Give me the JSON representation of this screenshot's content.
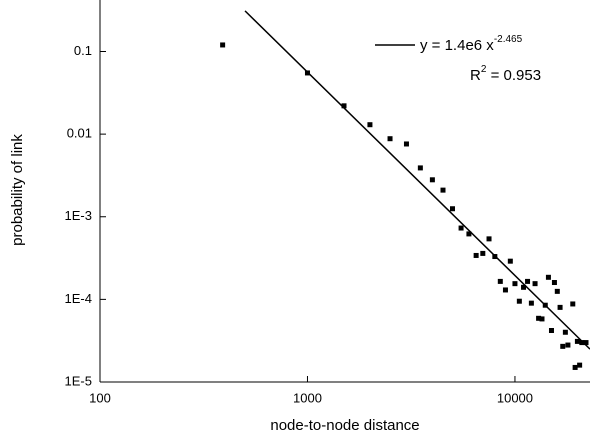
{
  "chart_data": {
    "type": "scatter",
    "x_label": "node-to-node distance",
    "y_label": "probability of link",
    "x": [
      390,
      1000,
      1500,
      2000,
      2500,
      3000,
      3500,
      4000,
      4500,
      5000,
      5500,
      6000,
      6500,
      7000,
      7500,
      8000,
      8500,
      9000,
      9500,
      10000,
      10500,
      11000,
      11500,
      12000,
      12500,
      13000,
      13500,
      14000,
      14500,
      15000,
      15500,
      16000,
      16500,
      17000,
      17500,
      18000,
      19000,
      19500,
      20000,
      20500,
      21000,
      22000
    ],
    "values": [
      0.12,
      0.055,
      0.022,
      0.013,
      0.0088,
      0.0076,
      0.0039,
      0.0028,
      0.0021,
      0.00125,
      0.00073,
      0.00062,
      0.00034,
      0.00036,
      0.00054,
      0.00033,
      0.000165,
      0.00013,
      0.00029,
      0.000155,
      9.5e-05,
      0.00014,
      0.000165,
      9e-05,
      0.000155,
      5.9e-05,
      5.8e-05,
      8.5e-05,
      0.000185,
      4.2e-05,
      0.00016,
      0.000125,
      8e-05,
      2.7e-05,
      4e-05,
      2.8e-05,
      8.8e-05,
      1.5e-05,
      3.1e-05,
      1.6e-05,
      3e-05,
      3e-05
    ],
    "color": "#000000",
    "fit_x": [
      500,
      23000
    ],
    "fit_values": [
      0.31,
      2.5e-05
    ],
    "fit_color": "#000000",
    "equation": "y = 1.4e6 x",
    "exponent": "-2.465",
    "r_squared_label": "R",
    "r_squared_sup": "2",
    "r_squared_value": " = 0.953",
    "xlim": [
      100,
      23000
    ],
    "ylim": [
      1e-05,
      0.42
    ],
    "xticks": [
      100,
      1000,
      10000
    ],
    "yticks": [
      0.1,
      0.01,
      {
        "value": 0.001,
        "label": "1E-3"
      },
      {
        "value": 0.0001,
        "label": "1E-4"
      },
      {
        "value": 1e-05,
        "label": "1E-5"
      }
    ],
    "log_x": true,
    "log_y": true,
    "grid": false
  }
}
